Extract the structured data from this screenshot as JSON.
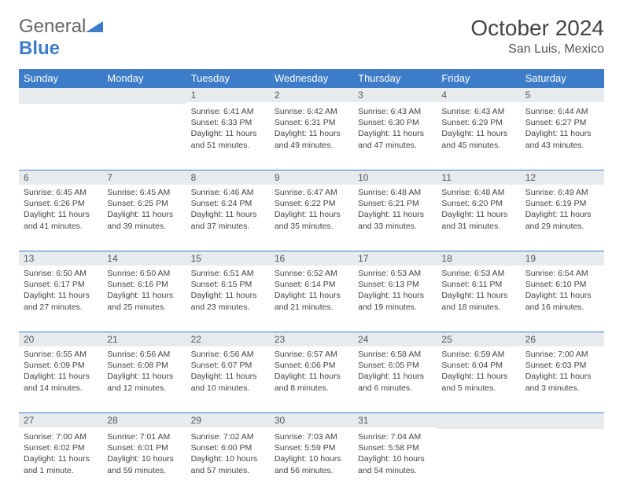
{
  "brand": {
    "part1": "General",
    "part2": "Blue"
  },
  "title": "October 2024",
  "location": "San Luis, Mexico",
  "colors": {
    "header_bg": "#3d7cc9",
    "header_text": "#ffffff",
    "daynum_bg": "#e8ebee",
    "rule": "#3d7cc9",
    "text": "#444444"
  },
  "weekday_labels": [
    "Sunday",
    "Monday",
    "Tuesday",
    "Wednesday",
    "Thursday",
    "Friday",
    "Saturday"
  ],
  "weeks": [
    [
      null,
      null,
      {
        "n": "1",
        "sunrise": "6:41 AM",
        "sunset": "6:33 PM",
        "daylight": "11 hours and 51 minutes."
      },
      {
        "n": "2",
        "sunrise": "6:42 AM",
        "sunset": "6:31 PM",
        "daylight": "11 hours and 49 minutes."
      },
      {
        "n": "3",
        "sunrise": "6:43 AM",
        "sunset": "6:30 PM",
        "daylight": "11 hours and 47 minutes."
      },
      {
        "n": "4",
        "sunrise": "6:43 AM",
        "sunset": "6:29 PM",
        "daylight": "11 hours and 45 minutes."
      },
      {
        "n": "5",
        "sunrise": "6:44 AM",
        "sunset": "6:27 PM",
        "daylight": "11 hours and 43 minutes."
      }
    ],
    [
      {
        "n": "6",
        "sunrise": "6:45 AM",
        "sunset": "6:26 PM",
        "daylight": "11 hours and 41 minutes."
      },
      {
        "n": "7",
        "sunrise": "6:45 AM",
        "sunset": "6:25 PM",
        "daylight": "11 hours and 39 minutes."
      },
      {
        "n": "8",
        "sunrise": "6:46 AM",
        "sunset": "6:24 PM",
        "daylight": "11 hours and 37 minutes."
      },
      {
        "n": "9",
        "sunrise": "6:47 AM",
        "sunset": "6:22 PM",
        "daylight": "11 hours and 35 minutes."
      },
      {
        "n": "10",
        "sunrise": "6:48 AM",
        "sunset": "6:21 PM",
        "daylight": "11 hours and 33 minutes."
      },
      {
        "n": "11",
        "sunrise": "6:48 AM",
        "sunset": "6:20 PM",
        "daylight": "11 hours and 31 minutes."
      },
      {
        "n": "12",
        "sunrise": "6:49 AM",
        "sunset": "6:19 PM",
        "daylight": "11 hours and 29 minutes."
      }
    ],
    [
      {
        "n": "13",
        "sunrise": "6:50 AM",
        "sunset": "6:17 PM",
        "daylight": "11 hours and 27 minutes."
      },
      {
        "n": "14",
        "sunrise": "6:50 AM",
        "sunset": "6:16 PM",
        "daylight": "11 hours and 25 minutes."
      },
      {
        "n": "15",
        "sunrise": "6:51 AM",
        "sunset": "6:15 PM",
        "daylight": "11 hours and 23 minutes."
      },
      {
        "n": "16",
        "sunrise": "6:52 AM",
        "sunset": "6:14 PM",
        "daylight": "11 hours and 21 minutes."
      },
      {
        "n": "17",
        "sunrise": "6:53 AM",
        "sunset": "6:13 PM",
        "daylight": "11 hours and 19 minutes."
      },
      {
        "n": "18",
        "sunrise": "6:53 AM",
        "sunset": "6:11 PM",
        "daylight": "11 hours and 18 minutes."
      },
      {
        "n": "19",
        "sunrise": "6:54 AM",
        "sunset": "6:10 PM",
        "daylight": "11 hours and 16 minutes."
      }
    ],
    [
      {
        "n": "20",
        "sunrise": "6:55 AM",
        "sunset": "6:09 PM",
        "daylight": "11 hours and 14 minutes."
      },
      {
        "n": "21",
        "sunrise": "6:56 AM",
        "sunset": "6:08 PM",
        "daylight": "11 hours and 12 minutes."
      },
      {
        "n": "22",
        "sunrise": "6:56 AM",
        "sunset": "6:07 PM",
        "daylight": "11 hours and 10 minutes."
      },
      {
        "n": "23",
        "sunrise": "6:57 AM",
        "sunset": "6:06 PM",
        "daylight": "11 hours and 8 minutes."
      },
      {
        "n": "24",
        "sunrise": "6:58 AM",
        "sunset": "6:05 PM",
        "daylight": "11 hours and 6 minutes."
      },
      {
        "n": "25",
        "sunrise": "6:59 AM",
        "sunset": "6:04 PM",
        "daylight": "11 hours and 5 minutes."
      },
      {
        "n": "26",
        "sunrise": "7:00 AM",
        "sunset": "6:03 PM",
        "daylight": "11 hours and 3 minutes."
      }
    ],
    [
      {
        "n": "27",
        "sunrise": "7:00 AM",
        "sunset": "6:02 PM",
        "daylight": "11 hours and 1 minute."
      },
      {
        "n": "28",
        "sunrise": "7:01 AM",
        "sunset": "6:01 PM",
        "daylight": "10 hours and 59 minutes."
      },
      {
        "n": "29",
        "sunrise": "7:02 AM",
        "sunset": "6:00 PM",
        "daylight": "10 hours and 57 minutes."
      },
      {
        "n": "30",
        "sunrise": "7:03 AM",
        "sunset": "5:59 PM",
        "daylight": "10 hours and 56 minutes."
      },
      {
        "n": "31",
        "sunrise": "7:04 AM",
        "sunset": "5:58 PM",
        "daylight": "10 hours and 54 minutes."
      },
      null,
      null
    ]
  ],
  "labels": {
    "sunrise_prefix": "Sunrise: ",
    "sunset_prefix": "Sunset: ",
    "daylight_prefix": "Daylight: "
  }
}
